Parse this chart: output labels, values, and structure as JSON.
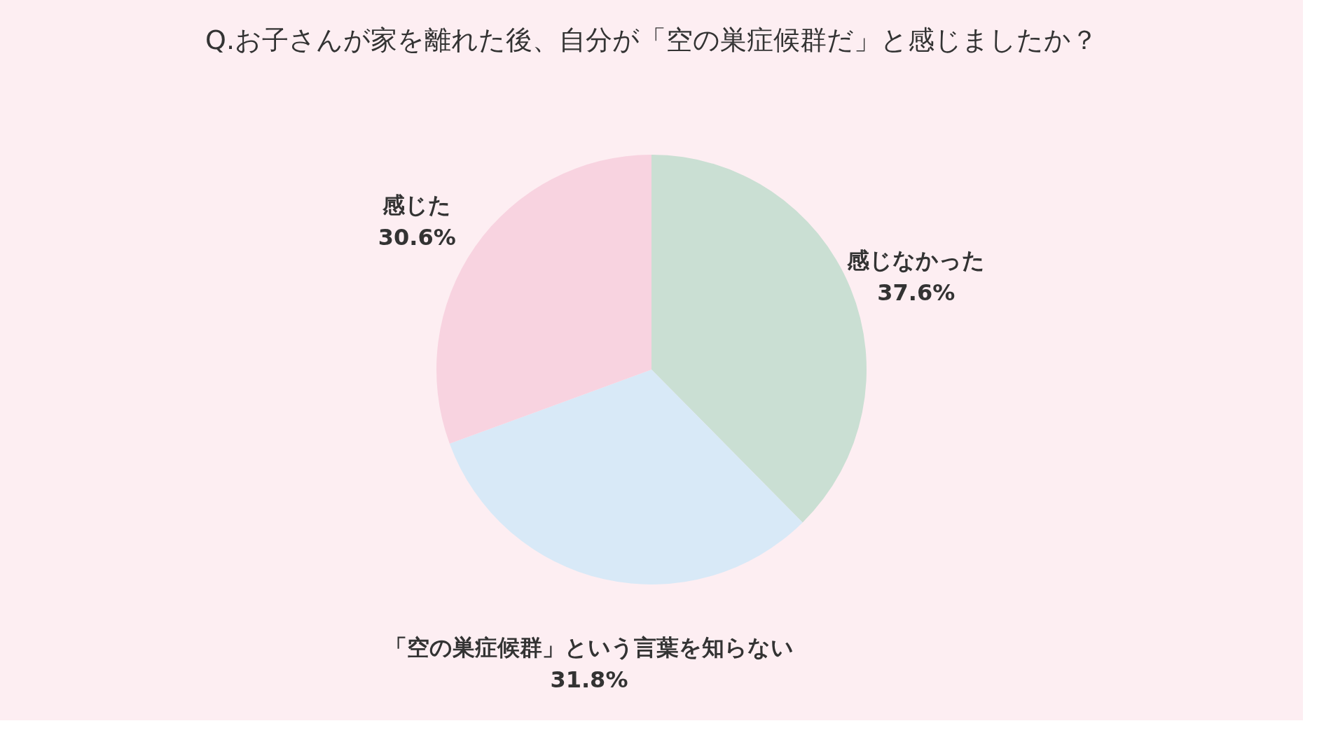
{
  "chart_data": {
    "type": "pie",
    "title": "Q.お子さんが家を離れた後、自分が「空の巣症候群だ」と感じましたか？",
    "categories": [
      "感じなかった",
      "「空の巣症候群」という言葉を知らない",
      "感じた"
    ],
    "values": [
      37.6,
      31.8,
      30.6
    ],
    "value_labels": [
      "37.6%",
      "31.8%",
      "30.6%"
    ],
    "colors": [
      "#cadfd3",
      "#d8e9f7",
      "#f8d3e0"
    ],
    "legend": false
  }
}
